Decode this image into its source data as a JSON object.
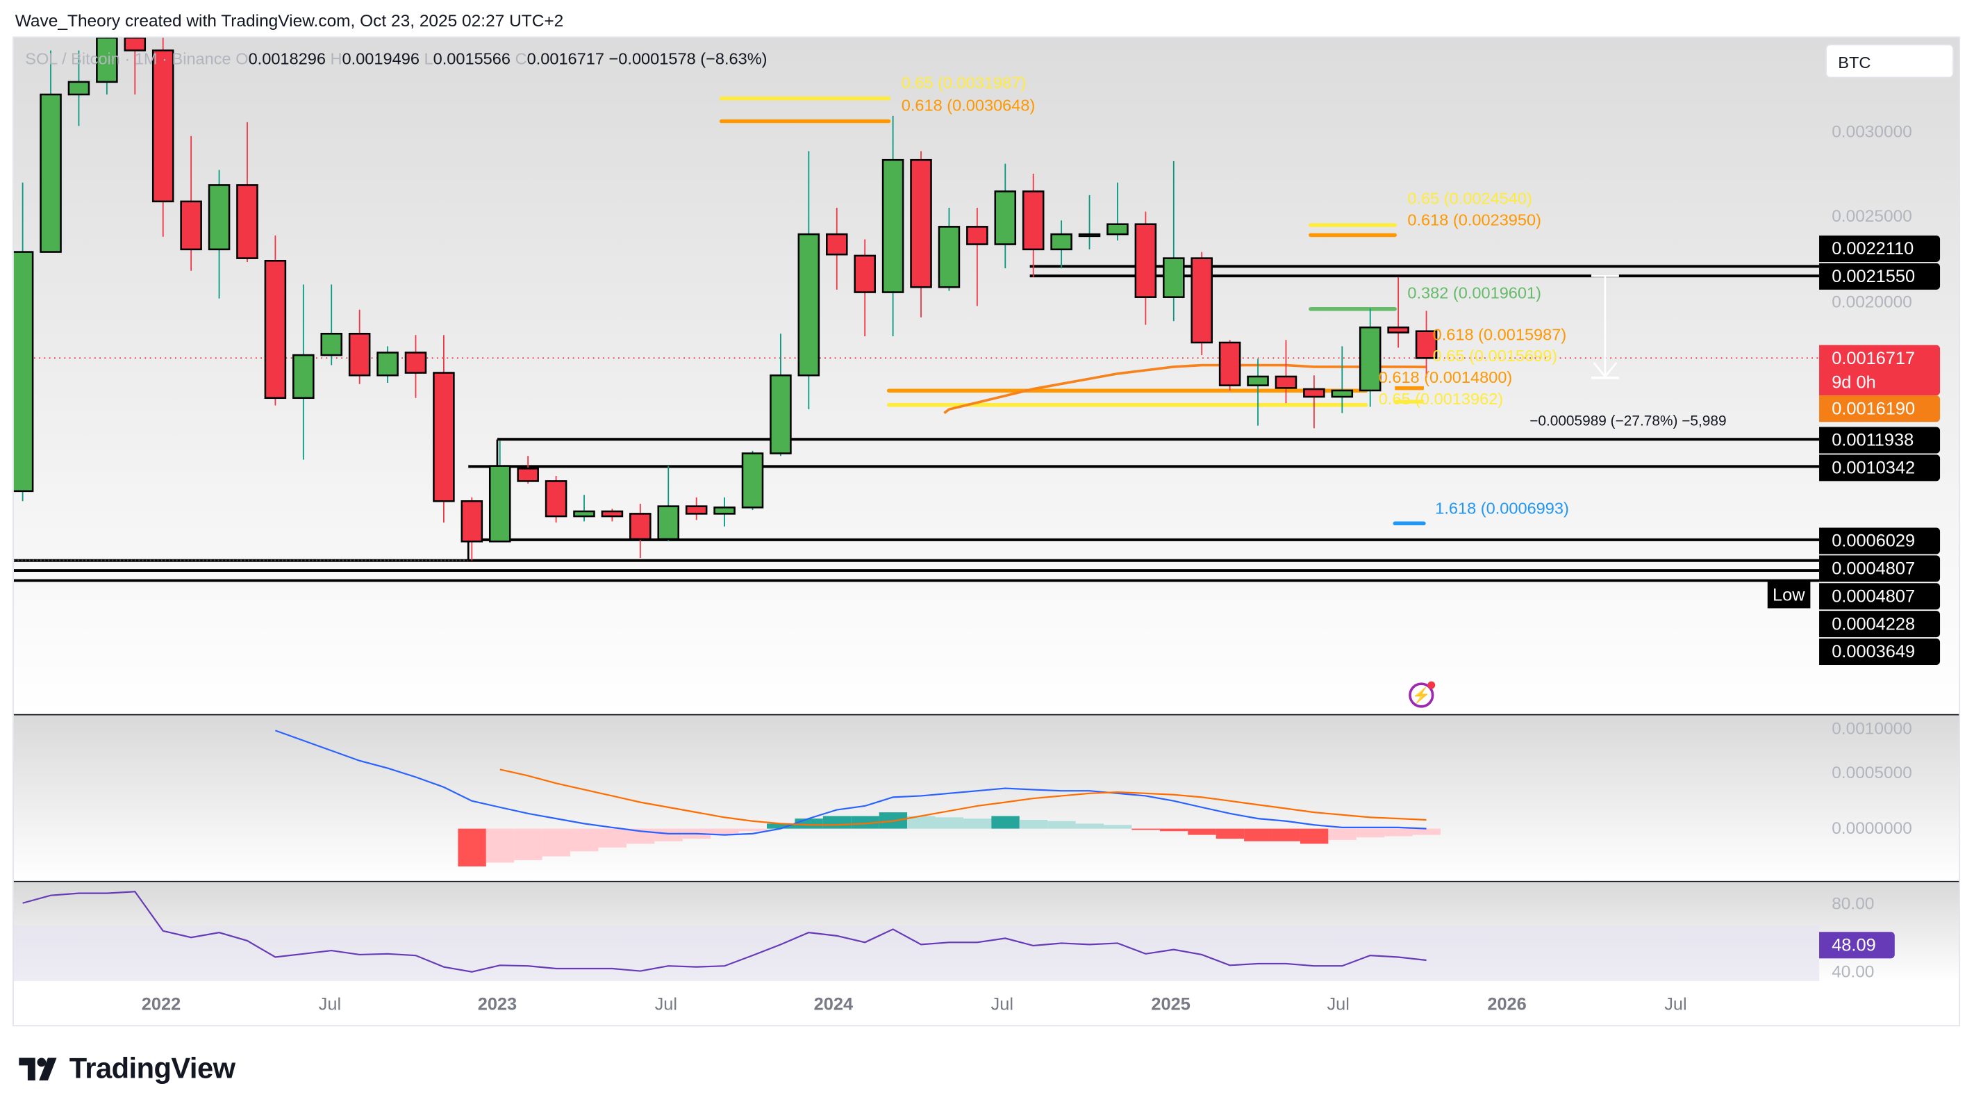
{
  "credit": "Wave_Theory created with TradingView.com, Oct 23, 2025 02:27 UTC+2",
  "legend": {
    "symbol": "SOL / Bitcoin · 1M · Binance",
    "o_label": "O",
    "o": "0.0018296",
    "h_label": "H",
    "h": "0.0019496",
    "l_label": "L",
    "l": "0.0015566",
    "c_label": "C",
    "c": "0.0016717",
    "change": "−0.0001578 (−8.63%)"
  },
  "currency_button": "BTC",
  "colors": {
    "up": "#4caf50",
    "down": "#f23645",
    "up_wick": "#089981",
    "ma": "#f7821b",
    "macd": "#2962ff",
    "signal": "#ff6d00",
    "rsi": "#673ab7",
    "hist_up_strong": "#26a69a",
    "hist_up_weak": "#b2dfdb",
    "hist_down_strong": "#ff5252",
    "hist_down_weak": "#ffcdd2"
  },
  "time_axis": [
    "2022",
    "Jul",
    "2023",
    "Jul",
    "2024",
    "Jul",
    "2025",
    "Jul",
    "2026",
    "Jul"
  ],
  "price_axis": [
    "0.0030000",
    "0.0025000",
    "0.0020000"
  ],
  "price_tags": {
    "levels": [
      "0.0022110",
      "0.0021550",
      "0.0011938",
      "0.0010342",
      "0.0006029",
      "0.0004807",
      "0.0004807",
      "0.0004228",
      "0.0003649"
    ],
    "last_price": "0.0016717",
    "countdown": "9d 0h",
    "ma_value": "0.0016190",
    "low_label": "Low"
  },
  "levels": [
    0.002211,
    0.002155,
    0.0011938,
    0.0010342,
    0.0006029,
    0.0004807
  ],
  "fibs": [
    {
      "label": "0.65 (0.0031987)",
      "price": 0.0031987,
      "color": "#ffeb3b"
    },
    {
      "label": "0.618 (0.0030648)",
      "price": 0.0030648,
      "color": "#ff9800"
    },
    {
      "label": "0.65 (0.0024540)",
      "price": 0.002454,
      "color": "#ffeb3b"
    },
    {
      "label": "0.618 (0.0023950)",
      "price": 0.002395,
      "color": "#ff9800"
    },
    {
      "label": "0.382 (0.0019601)",
      "price": 0.0019601,
      "color": "#66bb6a"
    },
    {
      "label": "0.618 (0.0015987)",
      "price": 0.0015987,
      "color": "#ff9800"
    },
    {
      "label": "0.65 (0.0015699)",
      "price": 0.0015699,
      "color": "#ffeb3b"
    },
    {
      "label": "0.618 (0.0014800)",
      "price": 0.00148,
      "color": "#ff9800"
    },
    {
      "label": "0.65 (0.0013962)",
      "price": 0.0013962,
      "color": "#ffeb3b"
    },
    {
      "label": "1.618 (0.0006993)",
      "price": 0.0006993,
      "color": "#2196f3"
    }
  ],
  "measure": "−0.0005989 (−27.78%) −5,989",
  "macd_axis": [
    "0.0010000",
    "0.0005000",
    "0.0000000"
  ],
  "rsi_axis": [
    "80.00",
    "40.00"
  ],
  "rsi_value": "48.09",
  "brand": "TradingView",
  "chart_data": {
    "type": "candlestick",
    "symbol": "SOL / Bitcoin",
    "interval": "1M",
    "exchange": "Binance",
    "ylim": [
      0.0003,
      0.0037
    ],
    "candles": [
      [
        "2021-08",
        0.000889,
        0.002704,
        0.00083,
        0.002296
      ],
      [
        "2021-09",
        0.002296,
        0.003481,
        0.002296,
        0.003222
      ],
      [
        "2021-10",
        0.003222,
        0.003481,
        0.003037,
        0.003296
      ],
      [
        "2021-11",
        0.003296,
        0.00363,
        0.003222,
        0.003556
      ],
      [
        "2021-12",
        0.003556,
        0.00363,
        0.003222,
        0.003481
      ],
      [
        "2022-01",
        0.003481,
        0.00363,
        0.002385,
        0.002593
      ],
      [
        "2022-02",
        0.002593,
        0.002978,
        0.002185,
        0.002311
      ],
      [
        "2022-03",
        0.002311,
        0.002778,
        0.002022,
        0.002689
      ],
      [
        "2022-04",
        0.002689,
        0.003059,
        0.002237,
        0.002259
      ],
      [
        "2022-05",
        0.002244,
        0.002393,
        0.001393,
        0.001437
      ],
      [
        "2022-06",
        0.001437,
        0.002104,
        0.001074,
        0.001689
      ],
      [
        "2022-07",
        0.001689,
        0.002104,
        0.00163,
        0.001815
      ],
      [
        "2022-08",
        0.001815,
        0.001956,
        0.001519,
        0.00157
      ],
      [
        "2022-09",
        0.00157,
        0.001741,
        0.001526,
        0.001704
      ],
      [
        "2022-10",
        0.001704,
        0.001807,
        0.001437,
        0.001585
      ],
      [
        "2022-11",
        0.001585,
        0.001807,
        0.000704,
        0.00083
      ],
      [
        "2022-12",
        0.00083,
        0.000852,
        0.000481,
        0.000593
      ],
      [
        "2023-01",
        0.000593,
        0.001185,
        0.000593,
        0.001037
      ],
      [
        "2023-02",
        0.001022,
        0.001096,
        0.000933,
        0.000948
      ],
      [
        "2023-03",
        0.000948,
        0.000978,
        0.000704,
        0.000741
      ],
      [
        "2023-04",
        0.000741,
        0.000867,
        0.000711,
        0.00077
      ],
      [
        "2023-05",
        0.00077,
        0.000785,
        0.000711,
        0.000741
      ],
      [
        "2023-06",
        0.000756,
        0.000815,
        0.000496,
        0.000607
      ],
      [
        "2023-07",
        0.000607,
        0.001037,
        0.000593,
        0.0008
      ],
      [
        "2023-08",
        0.0008,
        0.000852,
        0.000719,
        0.000756
      ],
      [
        "2023-09",
        0.000756,
        0.000852,
        0.000681,
        0.000793
      ],
      [
        "2023-10",
        0.000793,
        0.001126,
        0.000778,
        0.001111
      ],
      [
        "2023-11",
        0.001111,
        0.001815,
        0.001096,
        0.00157
      ],
      [
        "2023-12",
        0.00157,
        0.002889,
        0.00137,
        0.0024
      ],
      [
        "2024-01",
        0.0024,
        0.002556,
        0.002074,
        0.002281
      ],
      [
        "2024-02",
        0.002274,
        0.00237,
        0.0018,
        0.002059
      ],
      [
        "2024-03",
        0.002059,
        0.003096,
        0.0018,
        0.002837
      ],
      [
        "2024-04",
        0.002837,
        0.002889,
        0.001911,
        0.002089
      ],
      [
        "2024-05",
        0.002089,
        0.002556,
        0.002067,
        0.002444
      ],
      [
        "2024-06",
        0.002444,
        0.002556,
        0.001978,
        0.002341
      ],
      [
        "2024-07",
        0.002341,
        0.002815,
        0.0022,
        0.002652
      ],
      [
        "2024-08",
        0.002652,
        0.002756,
        0.002148,
        0.002311
      ],
      [
        "2024-09",
        0.002311,
        0.002481,
        0.0022,
        0.0024
      ],
      [
        "2024-10",
        0.0024,
        0.00263,
        0.002311,
        0.0024
      ],
      [
        "2024-11",
        0.0024,
        0.002704,
        0.002363,
        0.002459
      ],
      [
        "2024-12",
        0.002459,
        0.002533,
        0.001867,
        0.00203
      ],
      [
        "2025-01",
        0.00203,
        0.00283,
        0.001889,
        0.002259
      ],
      [
        "2025-02",
        0.002259,
        0.002296,
        0.001689,
        0.001763
      ],
      [
        "2025-03",
        0.001763,
        0.001778,
        0.001481,
        0.001511
      ],
      [
        "2025-04",
        0.001511,
        0.001667,
        0.001274,
        0.001563
      ],
      [
        "2025-05",
        0.001563,
        0.001778,
        0.001407,
        0.001496
      ],
      [
        "2025-06",
        0.001489,
        0.00157,
        0.001259,
        0.001444
      ],
      [
        "2025-07",
        0.001444,
        0.001741,
        0.001348,
        0.001481
      ],
      [
        "2025-08",
        0.001481,
        0.001963,
        0.001385,
        0.001852
      ],
      [
        "2025-09",
        0.001852,
        0.002148,
        0.001733,
        0.001822
      ],
      [
        "2025-10",
        0.0018296,
        0.0019496,
        0.0015566,
        0.0016717
      ]
    ],
    "ma": [
      null,
      null,
      null,
      null,
      null,
      null,
      null,
      null,
      null,
      null,
      null,
      null,
      null,
      null,
      null,
      null,
      null,
      null,
      null,
      null,
      null,
      null,
      null,
      null,
      null,
      null,
      null,
      null,
      null,
      null,
      null,
      null,
      null,
      0.00137,
      0.00141,
      0.00145,
      0.00149,
      0.00152,
      0.00155,
      0.00158,
      0.0016,
      0.00162,
      0.00163,
      0.00163,
      0.00163,
      0.00163,
      0.00162,
      0.00162,
      0.00162,
      0.00162,
      0.001619
    ],
    "macd": [
      null,
      null,
      null,
      null,
      null,
      null,
      null,
      null,
      null,
      0.000896,
      0.000804,
      0.000712,
      0.00062,
      0.000552,
      0.000471,
      0.000379,
      0.000253,
      0.000195,
      0.000138,
      9.2e-05,
      4.6e-05,
      1.1e-05,
      -2.3e-05,
      -4.6e-05,
      -4.6e-05,
      -5.7e-05,
      -4.6e-05,
      0,
      9.2e-05,
      0.000172,
      0.000207,
      0.000287,
      0.000299,
      0.000322,
      0.000345,
      0.000368,
      0.000356,
      0.000345,
      0.000345,
      0.000322,
      0.000299,
      0.000253,
      0.000195,
      0.000138,
      9.2e-05,
      6.9e-05,
      3.4e-05,
      1.1e-05,
      1.1e-05,
      1.1e-05,
      0
    ],
    "signal": [
      null,
      null,
      null,
      null,
      null,
      null,
      null,
      null,
      null,
      null,
      null,
      null,
      null,
      null,
      null,
      null,
      null,
      0.00054,
      0.000483,
      0.000414,
      0.000356,
      0.000299,
      0.000241,
      0.000195,
      0.000149,
      0.000103,
      6.9e-05,
      4.6e-05,
      3.4e-05,
      3.4e-05,
      4.6e-05,
      6.9e-05,
      0.000115,
      0.000161,
      0.000207,
      0.000241,
      0.000276,
      0.000299,
      0.000322,
      0.000333,
      0.000322,
      0.00031,
      0.000287,
      0.000253,
      0.000218,
      0.000184,
      0.000149,
      0.000126,
      0.000103,
      9.2e-05,
      8e-05
    ],
    "histogram": [
      null,
      null,
      null,
      null,
      null,
      null,
      null,
      null,
      null,
      null,
      null,
      null,
      null,
      null,
      null,
      null,
      -0.000345,
      -0.00031,
      -0.000287,
      -0.000253,
      -0.000207,
      -0.000172,
      -0.000138,
      -0.000115,
      -9.2e-05,
      -5.7e-05,
      -2.3e-05,
      4.6e-05,
      9.2e-05,
      0.000115,
      0.000115,
      0.000149,
      0.000115,
      0.000103,
      9.2e-05,
      0.000115,
      8e-05,
      6.9e-05,
      4.6e-05,
      3.4e-05,
      -1.1e-05,
      -2.3e-05,
      -5.7e-05,
      -9.2e-05,
      -0.000115,
      -0.000115,
      -0.000138,
      -0.000103,
      -8e-05,
      -6.9e-05,
      -5.7e-05
    ],
    "rsi": [
      83,
      87.7,
      89,
      89,
      90,
      66,
      62,
      65,
      60,
      50,
      52,
      54,
      51.5,
      52,
      51,
      44,
      41,
      45,
      44.6,
      43,
      43,
      43,
      41.5,
      44.6,
      44,
      44.6,
      51,
      57.7,
      65,
      63,
      59,
      67,
      57.7,
      59,
      59,
      61.5,
      57,
      58.5,
      57.7,
      58.5,
      52,
      54.6,
      51.5,
      45,
      46,
      46,
      44.6,
      44.6,
      51,
      50,
      48.09
    ]
  }
}
